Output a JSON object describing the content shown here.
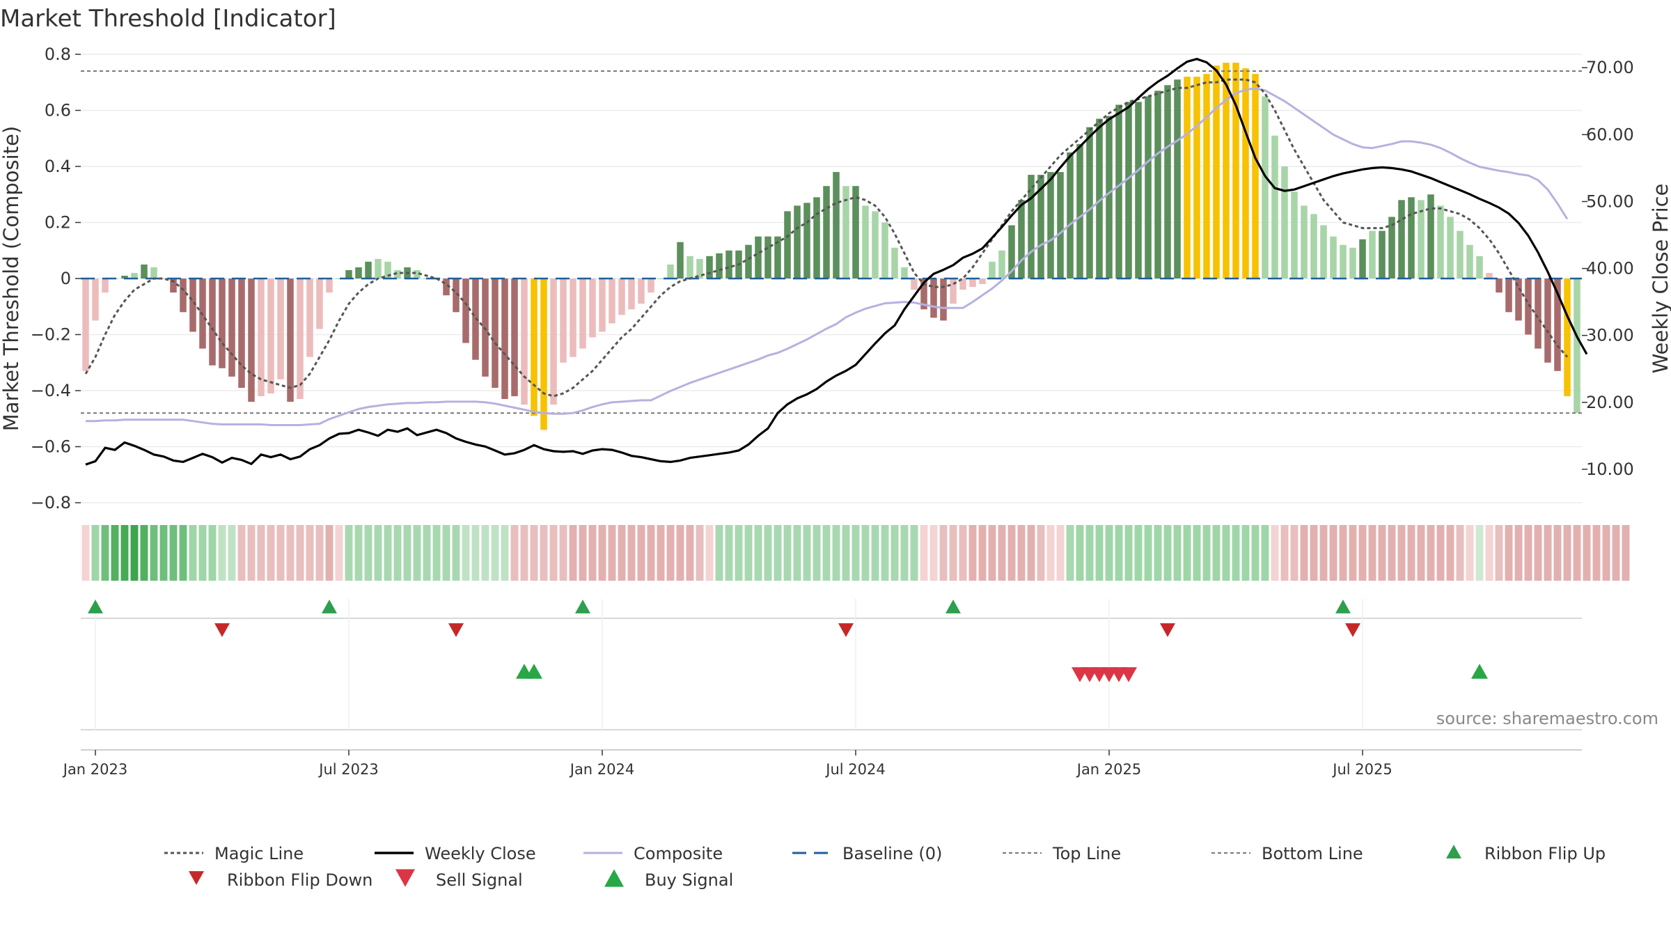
{
  "chart_data": {
    "type": "bar",
    "title": "Market Threshold [Indicator]",
    "ylabel_left": "Market Threshold (Composite)",
    "ylabel_right": "Weekly Close Price",
    "ylim_left": [
      -0.8,
      0.8
    ],
    "ylim_right": [
      5,
      72
    ],
    "yticks_left": [
      "0.8",
      "0.6",
      "0.4",
      "0.2",
      "0",
      "−0.2",
      "−0.4",
      "−0.6",
      "−0.8"
    ],
    "yticks_left_values": [
      0.8,
      0.6,
      0.4,
      0.2,
      0,
      -0.2,
      -0.4,
      -0.6,
      -0.8
    ],
    "yticks_right": [
      "70.00",
      "60.00",
      "50.00",
      "40.00",
      "30.00",
      "20.00",
      "10.00"
    ],
    "yticks_right_values": [
      70,
      60,
      50,
      40,
      30,
      20,
      10
    ],
    "xticks": [
      "Jan 2023",
      "Jul 2023",
      "Jan 2024",
      "Jul 2024",
      "Jan 2025",
      "Jul 2025"
    ],
    "xticks_week_index": [
      1,
      27,
      53,
      79,
      105,
      131
    ],
    "top_line": 0.74,
    "bottom_line": -0.48,
    "grid": true,
    "legend_position": "bottom",
    "source": "source: sharemaestro.com",
    "colors": {
      "strong_pos": "#5b8f5b",
      "weak_pos": "#a8d5a8",
      "strong_neg": "#a86b6b",
      "weak_neg": "#ecbcbc",
      "extreme": "#f7c202",
      "magic": "#555555",
      "close": "#000000",
      "composite": "#b6b1e0",
      "baseline": "#1f5f9a",
      "flip_up": "#2e9e4f",
      "flip_down": "#c62828",
      "sell": "#dc3545",
      "buy": "#28a745"
    },
    "composite_bars": [
      -0.33,
      -0.15,
      -0.05,
      0,
      0.01,
      0.02,
      0.05,
      0.04,
      0,
      -0.05,
      -0.12,
      -0.19,
      -0.25,
      -0.31,
      -0.32,
      -0.35,
      -0.39,
      -0.44,
      -0.42,
      -0.41,
      -0.36,
      -0.44,
      -0.43,
      -0.28,
      -0.18,
      -0.05,
      0,
      0.03,
      0.04,
      0.06,
      0.07,
      0.06,
      0.03,
      0.04,
      0.03,
      0,
      0,
      -0.06,
      -0.12,
      -0.23,
      -0.29,
      -0.35,
      -0.39,
      -0.43,
      -0.42,
      -0.45,
      -0.49,
      -0.54,
      -0.45,
      -0.3,
      -0.28,
      -0.25,
      -0.21,
      -0.19,
      -0.16,
      -0.13,
      -0.11,
      -0.09,
      -0.05,
      0,
      0.05,
      0.13,
      0.08,
      0.07,
      0.08,
      0.09,
      0.1,
      0.1,
      0.12,
      0.15,
      0.15,
      0.15,
      0.24,
      0.26,
      0.27,
      0.29,
      0.33,
      0.38,
      0.33,
      0.33,
      0.26,
      0.24,
      0.2,
      0.11,
      0.04,
      -0.04,
      -0.11,
      -0.14,
      -0.15,
      -0.09,
      -0.04,
      -0.03,
      -0.02,
      0.06,
      0.1,
      0.19,
      0.28,
      0.37,
      0.37,
      0.38,
      0.38,
      0.45,
      0.48,
      0.54,
      0.57,
      0.58,
      0.62,
      0.63,
      0.63,
      0.65,
      0.67,
      0.69,
      0.71,
      0.72,
      0.72,
      0.73,
      0.76,
      0.77,
      0.77,
      0.75,
      0.73,
      0.65,
      0.51,
      0.4,
      0.31,
      0.26,
      0.23,
      0.19,
      0.15,
      0.12,
      0.11,
      0.14,
      0.17,
      0.17,
      0.22,
      0.28,
      0.29,
      0.28,
      0.3,
      0.26,
      0.22,
      0.17,
      0.12,
      0.08,
      0.02,
      -0.05,
      -0.12,
      -0.15,
      -0.2,
      -0.25,
      -0.3,
      -0.33,
      -0.42,
      -0.48
    ],
    "bar_class": [
      "wn",
      "wn",
      "wn",
      "wp",
      "sp",
      "wp",
      "sp",
      "wp",
      "wn",
      "sn",
      "sn",
      "sn",
      "sn",
      "sn",
      "sn",
      "sn",
      "sn",
      "sn",
      "wn",
      "wn",
      "wn",
      "sn",
      "wn",
      "wn",
      "wn",
      "wn",
      "wp",
      "sp",
      "sp",
      "sp",
      "wp",
      "wp",
      "wp",
      "sp",
      "wp",
      "wp",
      "wn",
      "sn",
      "sn",
      "sn",
      "sn",
      "sn",
      "sn",
      "sn",
      "sn",
      "wn",
      "ex",
      "ex",
      "wn",
      "wn",
      "wn",
      "wn",
      "wn",
      "wn",
      "wn",
      "wn",
      "wn",
      "wn",
      "wn",
      "wp",
      "wp",
      "sp",
      "wp",
      "wp",
      "sp",
      "sp",
      "sp",
      "sp",
      "sp",
      "sp",
      "sp",
      "sp",
      "sp",
      "sp",
      "sp",
      "sp",
      "sp",
      "sp",
      "wp",
      "sp",
      "wp",
      "wp",
      "wp",
      "wp",
      "wp",
      "wn",
      "sn",
      "sn",
      "sn",
      "wn",
      "wn",
      "wn",
      "wn",
      "wp",
      "wp",
      "sp",
      "sp",
      "sp",
      "sp",
      "sp",
      "sp",
      "sp",
      "sp",
      "sp",
      "sp",
      "sp",
      "sp",
      "sp",
      "sp",
      "sp",
      "sp",
      "sp",
      "sp",
      "ex",
      "ex",
      "ex",
      "ex",
      "ex",
      "ex",
      "ex",
      "ex",
      "wp",
      "wp",
      "wp",
      "wp",
      "wp",
      "wp",
      "wp",
      "wp",
      "wp",
      "wp",
      "sp",
      "wp",
      "sp",
      "sp",
      "sp",
      "sp",
      "wp",
      "sp",
      "wp",
      "wp",
      "wp",
      "wp",
      "wp",
      "wn",
      "sn",
      "sn",
      "sn",
      "sn",
      "sn",
      "sn",
      "sn",
      "ex"
    ],
    "magic_line": [
      -0.34,
      -0.28,
      -0.2,
      -0.13,
      -0.08,
      -0.04,
      -0.02,
      0,
      0,
      -0.01,
      -0.04,
      -0.08,
      -0.13,
      -0.18,
      -0.23,
      -0.27,
      -0.31,
      -0.34,
      -0.36,
      -0.37,
      -0.38,
      -0.39,
      -0.38,
      -0.34,
      -0.28,
      -0.22,
      -0.15,
      -0.09,
      -0.05,
      -0.02,
      0,
      0.01,
      0.02,
      0.02,
      0.02,
      0.01,
      0,
      -0.02,
      -0.05,
      -0.09,
      -0.14,
      -0.18,
      -0.23,
      -0.27,
      -0.31,
      -0.35,
      -0.38,
      -0.41,
      -0.42,
      -0.41,
      -0.39,
      -0.36,
      -0.33,
      -0.29,
      -0.25,
      -0.21,
      -0.18,
      -0.14,
      -0.1,
      -0.06,
      -0.03,
      -0.01,
      0,
      0.01,
      0.02,
      0.03,
      0.04,
      0.05,
      0.07,
      0.09,
      0.11,
      0.13,
      0.15,
      0.18,
      0.2,
      0.23,
      0.25,
      0.27,
      0.28,
      0.29,
      0.28,
      0.26,
      0.22,
      0.16,
      0.09,
      0.02,
      -0.02,
      -0.03,
      -0.03,
      -0.02,
      0,
      0.04,
      0.09,
      0.14,
      0.19,
      0.24,
      0.28,
      0.32,
      0.36,
      0.4,
      0.44,
      0.47,
      0.5,
      0.53,
      0.56,
      0.59,
      0.61,
      0.63,
      0.64,
      0.65,
      0.66,
      0.67,
      0.68,
      0.68,
      0.69,
      0.7,
      0.7,
      0.71,
      0.71,
      0.71,
      0.7,
      0.66,
      0.6,
      0.53,
      0.46,
      0.4,
      0.34,
      0.28,
      0.24,
      0.2,
      0.19,
      0.18,
      0.18,
      0.18,
      0.19,
      0.21,
      0.23,
      0.24,
      0.25,
      0.25,
      0.24,
      0.23,
      0.21,
      0.18,
      0.14,
      0.09,
      0.03,
      -0.03,
      -0.09,
      -0.14,
      -0.19,
      -0.24,
      -0.28
    ],
    "composite_line": [
      17.2,
      17.2,
      17.3,
      17.3,
      17.4,
      17.4,
      17.4,
      17.4,
      17.4,
      17.4,
      17.4,
      17.2,
      17.0,
      16.8,
      16.7,
      16.7,
      16.7,
      16.7,
      16.7,
      16.6,
      16.6,
      16.6,
      16.6,
      16.7,
      16.8,
      17.5,
      18.0,
      18.5,
      19.0,
      19.3,
      19.5,
      19.7,
      19.8,
      19.9,
      19.9,
      20.0,
      20.0,
      20.1,
      20.1,
      20.1,
      20.1,
      20.0,
      19.8,
      19.5,
      19.2,
      18.9,
      18.6,
      18.4,
      18.3,
      18.3,
      18.4,
      18.8,
      19.3,
      19.7,
      20.0,
      20.1,
      20.2,
      20.3,
      20.3,
      21.0,
      21.7,
      22.3,
      22.9,
      23.4,
      23.9,
      24.4,
      24.9,
      25.4,
      25.9,
      26.4,
      27.0,
      27.4,
      28.0,
      28.7,
      29.4,
      30.2,
      31.0,
      31.7,
      32.7,
      33.4,
      34.0,
      34.4,
      34.8,
      34.9,
      35.0,
      34.9,
      34.6,
      34.3,
      34.1,
      34.1,
      34.1,
      35.0,
      36.0,
      37.0,
      38.2,
      39.6,
      41.2,
      42.5,
      43.5,
      44.2,
      45.3,
      46.6,
      47.7,
      48.8,
      50.1,
      51.3,
      52.4,
      53.5,
      54.7,
      56.0,
      57.2,
      58.2,
      59.1,
      60.1,
      61.3,
      62.6,
      64.0,
      65.2,
      66.2,
      66.7,
      66.9,
      66.6,
      65.8,
      65.0,
      64.0,
      63.0,
      62.0,
      61.0,
      60.0,
      59.3,
      58.6,
      58.1,
      58.0,
      58.3,
      58.6,
      59.0,
      59.0,
      58.8,
      58.5,
      58.0,
      57.3,
      56.5,
      55.8,
      55.2,
      54.9,
      54.6,
      54.4,
      54.1,
      53.9,
      53.2,
      51.8,
      49.7,
      47.4
    ],
    "weekly_close": [
      10.7,
      11.2,
      13.2,
      12.9,
      14.0,
      13.5,
      12.9,
      12.2,
      11.9,
      11.3,
      11.1,
      11.7,
      12.3,
      11.8,
      11.0,
      11.7,
      11.4,
      10.8,
      12.2,
      11.8,
      12.2,
      11.5,
      11.9,
      13.0,
      13.6,
      14.6,
      15.3,
      15.4,
      15.9,
      15.5,
      15.0,
      15.9,
      15.6,
      16.1,
      15.1,
      15.5,
      15.9,
      15.4,
      14.6,
      14.1,
      13.7,
      13.4,
      12.8,
      12.2,
      12.4,
      12.9,
      13.6,
      13.0,
      12.7,
      12.6,
      12.7,
      12.3,
      12.8,
      13.0,
      12.9,
      12.5,
      12.0,
      11.8,
      11.5,
      11.2,
      11.1,
      11.3,
      11.7,
      11.9,
      12.1,
      12.3,
      12.5,
      12.8,
      13.7,
      15.0,
      16.1,
      18.4,
      19.7,
      20.6,
      21.2,
      22.0,
      23.1,
      24.0,
      24.7,
      25.6,
      27.2,
      28.8,
      30.3,
      31.5,
      33.9,
      35.9,
      37.9,
      39.2,
      39.8,
      40.5,
      41.6,
      42.2,
      43.0,
      44.6,
      46.2,
      47.9,
      49.5,
      50.5,
      51.9,
      53.3,
      55.1,
      56.8,
      58.2,
      59.7,
      61.1,
      62.3,
      63.2,
      64.1,
      65.5,
      66.8,
      67.9,
      68.8,
      69.9,
      70.9,
      71.3,
      70.8,
      69.6,
      67.5,
      64.4,
      60.4,
      56.5,
      53.8,
      52.0,
      51.6,
      51.8,
      52.3,
      52.8,
      53.3,
      53.8,
      54.2,
      54.5,
      54.8,
      55.0,
      55.1,
      55.0,
      54.8,
      54.5,
      54.0,
      53.5,
      52.9,
      52.3,
      51.7,
      51.1,
      50.4,
      49.8,
      49.1,
      48.2,
      46.8,
      44.9,
      42.4,
      39.5,
      36.3,
      32.9,
      29.8,
      27.2
    ],
    "ribbon_colors": [
      "#f4d3d3",
      "#9ed6a8",
      "#6fbf7c",
      "#52b05f",
      "#46aa55",
      "#3ea44d",
      "#52b05f",
      "#6fbf7c",
      "#6fbf7c",
      "#6fbf7c",
      "#6fbf7c",
      "#9ed6a8",
      "#9ed6a8",
      "#9ed6a8",
      "#bfe2c5",
      "#bfe2c5",
      "#e8bebe",
      "#e8bebe",
      "#e8bebe",
      "#e8bebe",
      "#e8bebe",
      "#e8bebe",
      "#e8bebe",
      "#e8bebe",
      "#e8bebe",
      "#e3b0b0",
      "#f4d3d3",
      "#a8d8b0",
      "#a8d8b0",
      "#a8d8b0",
      "#a8d8b0",
      "#a8d8b0",
      "#a8d8b0",
      "#a8d8b0",
      "#a8d8b0",
      "#a8d8b0",
      "#a8d8b0",
      "#a8d8b0",
      "#a8d8b0",
      "#bfe2c5",
      "#bfe2c5",
      "#bfe2c5",
      "#bfe2c5",
      "#bfe2c5",
      "#e8bebe",
      "#e8bebe",
      "#e8bebe",
      "#e8bebe",
      "#e8bebe",
      "#e8bebe",
      "#e3b0b0",
      "#e3b0b0",
      "#e3b0b0",
      "#e3b0b0",
      "#e3b0b0",
      "#e3b0b0",
      "#e3b0b0",
      "#e3b0b0",
      "#e3b0b0",
      "#e3b0b0",
      "#e3b0b0",
      "#e3b0b0",
      "#e3b0b0",
      "#e8bebe",
      "#f4d3d3",
      "#a8d8b0",
      "#a8d8b0",
      "#a8d8b0",
      "#a8d8b0",
      "#a8d8b0",
      "#a8d8b0",
      "#a8d8b0",
      "#a8d8b0",
      "#a8d8b0",
      "#a8d8b0",
      "#a8d8b0",
      "#a8d8b0",
      "#a8d8b0",
      "#a8d8b0",
      "#a8d8b0",
      "#a8d8b0",
      "#a8d8b0",
      "#a8d8b0",
      "#a8d8b0",
      "#a8d8b0",
      "#a8d8b0",
      "#f4d3d3",
      "#f4d3d3",
      "#e8bebe",
      "#e8bebe",
      "#e8bebe",
      "#e3b0b0",
      "#e3b0b0",
      "#e3b0b0",
      "#e3b0b0",
      "#e3b0b0",
      "#e3b0b0",
      "#e3b0b0",
      "#e8bebe",
      "#f4d3d3",
      "#f4d3d3",
      "#a8d8b0",
      "#9ed6a8",
      "#9ed6a8",
      "#9ed6a8",
      "#9ed6a8",
      "#9ed6a8",
      "#9ed6a8",
      "#9ed6a8",
      "#9ed6a8",
      "#9ed6a8",
      "#9ed6a8",
      "#9ed6a8",
      "#9ed6a8",
      "#9ed6a8",
      "#9ed6a8",
      "#9ed6a8",
      "#9ed6a8",
      "#9ed6a8",
      "#9ed6a8",
      "#9ed6a8",
      "#9ed6a8",
      "#f4d3d3",
      "#e8bebe",
      "#e8bebe",
      "#e3b0b0",
      "#e3b0b0",
      "#e3b0b0",
      "#e3b0b0",
      "#e3b0b0",
      "#e3b0b0",
      "#e3b0b0",
      "#e3b0b0",
      "#e3b0b0",
      "#e3b0b0",
      "#e3b0b0",
      "#e3b0b0",
      "#e3b0b0",
      "#e3b0b0",
      "#e3b0b0",
      "#e3b0b0",
      "#e8bebe",
      "#f4d3d3",
      "#cfe9d4",
      "#f4d3d3",
      "#e8bebe",
      "#e3b0b0",
      "#e3b0b0",
      "#e3b0b0",
      "#e3b0b0",
      "#e3b0b0",
      "#e3b0b0",
      "#e3b0b0",
      "#e3b0b0",
      "#e3b0b0",
      "#e3b0b0",
      "#e3b0b0",
      "#e3b0b0",
      "#e3b0b0"
    ],
    "ribbon_flip_up_weeks": [
      1,
      25,
      51,
      89,
      129
    ],
    "ribbon_flip_down_weeks": [
      14,
      38,
      78,
      111,
      130
    ],
    "buy_signal_weeks": [
      45,
      46,
      143
    ],
    "sell_signal_weeks": [
      102,
      103,
      104,
      105,
      106,
      107
    ],
    "legend_entries": [
      "Magic Line",
      "Weekly Close",
      "Composite",
      "Baseline (0)",
      "Top Line",
      "Bottom Line",
      "Ribbon Flip Up",
      "Ribbon Flip Down",
      "Sell Signal",
      "Buy Signal"
    ]
  }
}
